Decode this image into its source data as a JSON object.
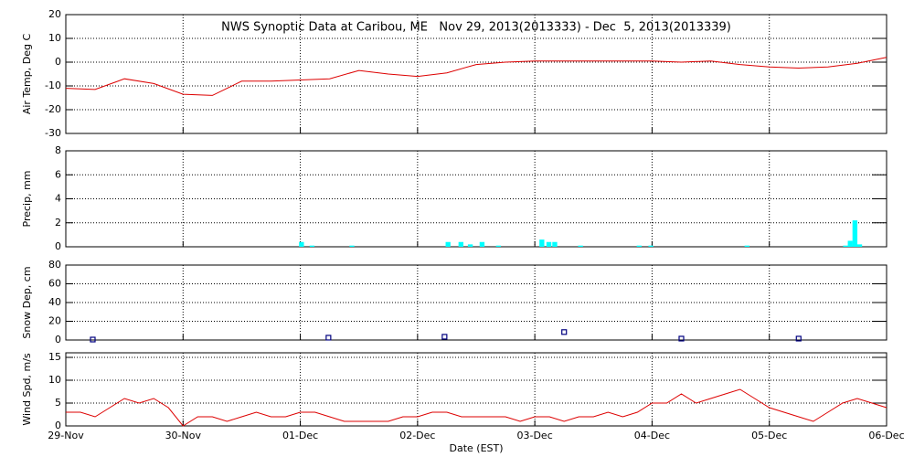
{
  "chart_data": [
    {
      "type": "line",
      "title": "NWS Synoptic Data at Caribou, ME   Nov 29, 2013(2013333) - Dec  5, 2013(2013339)",
      "ylabel": "Air Temp, Deg C",
      "color": "#dd0000",
      "x": [
        0,
        0.25,
        0.5,
        0.75,
        1,
        1.25,
        1.5,
        1.75,
        2,
        2.25,
        2.5,
        2.75,
        3,
        3.25,
        3.5,
        3.75,
        4,
        4.25,
        4.5,
        4.75,
        5,
        5.25,
        5.5,
        5.75,
        6,
        6.25,
        6.5,
        6.75,
        7
      ],
      "values": [
        -11,
        -11.5,
        -7,
        -9,
        -13.5,
        -14,
        -8,
        -8,
        -7.5,
        -7,
        -3.5,
        -5,
        -6,
        -4.5,
        -1,
        0,
        0.5,
        0.5,
        0.5,
        0.5,
        0.5,
        0,
        0.5,
        -1,
        -2,
        -2.5,
        -2,
        -0.5,
        2
      ],
      "xlim": [
        0,
        7
      ],
      "xticks": [
        0,
        1,
        2,
        3,
        4,
        5,
        6,
        7
      ],
      "ylim": [
        -30,
        20
      ],
      "yticks": [
        -30,
        -20,
        -10,
        0,
        10,
        20
      ],
      "grid": true
    },
    {
      "type": "bar",
      "ylabel": "Precip, mm",
      "color": "#00ffff",
      "x": [
        2.01,
        2.1,
        2.44,
        3.26,
        3.37,
        3.45,
        3.55,
        3.69,
        4.06,
        4.12,
        4.17,
        4.39,
        4.89,
        4.99,
        5.81,
        6.65,
        6.69,
        6.73,
        6.77
      ],
      "values": [
        0.4,
        0.1,
        0.1,
        0.4,
        0.4,
        0.2,
        0.4,
        0.1,
        0.6,
        0.4,
        0.4,
        0.1,
        0.1,
        0.1,
        0.1,
        0.1,
        0.5,
        2.2,
        0.2
      ],
      "xlim": [
        0,
        7
      ],
      "xticks": [
        0,
        1,
        2,
        3,
        4,
        5,
        6,
        7
      ],
      "ylim": [
        0,
        8
      ],
      "yticks": [
        0,
        2,
        4,
        6,
        8
      ],
      "grid": true
    },
    {
      "type": "scatter",
      "ylabel": "Snow Dep, cm",
      "color": "#000080",
      "x": [
        0.23,
        2.24,
        3.23,
        4.25,
        5.25,
        6.25
      ],
      "values": [
        0,
        2,
        3,
        8,
        1,
        1
      ],
      "xlim": [
        0,
        7
      ],
      "xticks": [
        0,
        1,
        2,
        3,
        4,
        5,
        6,
        7
      ],
      "ylim": [
        0,
        80
      ],
      "yticks": [
        0,
        20,
        40,
        60,
        80
      ],
      "grid": true
    },
    {
      "type": "line",
      "ylabel": "Wind Spd, m/s",
      "xlabel": "Date (EST)",
      "color": "#dd0000",
      "x": [
        0,
        0.125,
        0.25,
        0.375,
        0.5,
        0.625,
        0.75,
        0.875,
        1,
        1.125,
        1.25,
        1.375,
        1.5,
        1.625,
        1.75,
        1.875,
        2,
        2.125,
        2.25,
        2.375,
        2.5,
        2.625,
        2.75,
        2.875,
        3,
        3.125,
        3.25,
        3.375,
        3.5,
        3.625,
        3.75,
        3.875,
        4,
        4.125,
        4.25,
        4.375,
        4.5,
        4.625,
        4.75,
        4.875,
        5,
        5.125,
        5.25,
        5.375,
        5.5,
        5.625,
        5.75,
        5.875,
        6,
        6.125,
        6.25,
        6.375,
        6.5,
        6.625,
        6.75,
        6.875,
        7
      ],
      "values": [
        3,
        3,
        2,
        4,
        6,
        5,
        6,
        4,
        0,
        2,
        2,
        1,
        2,
        3,
        2,
        2,
        3,
        3,
        2,
        1,
        1,
        1,
        1,
        2,
        2,
        3,
        3,
        2,
        2,
        2,
        2,
        1,
        2,
        2,
        1,
        2,
        2,
        3,
        2,
        3,
        5,
        5,
        7,
        5,
        6,
        7,
        8,
        6,
        4,
        3,
        2,
        1,
        3,
        5,
        6,
        5,
        4
      ],
      "xlim": [
        0,
        7
      ],
      "xticks": [
        {
          "value": 0,
          "label": "29-Nov"
        },
        {
          "value": 1,
          "label": "30-Nov"
        },
        {
          "value": 2,
          "label": "01-Dec"
        },
        {
          "value": 3,
          "label": "02-Dec"
        },
        {
          "value": 4,
          "label": "03-Dec"
        },
        {
          "value": 5,
          "label": "04-Dec"
        },
        {
          "value": 6,
          "label": "05-Dec"
        },
        {
          "value": 7,
          "label": "06-Dec"
        }
      ],
      "ylim": [
        0,
        16
      ],
      "yticks": [
        0,
        5,
        10,
        15
      ],
      "grid": true
    }
  ]
}
